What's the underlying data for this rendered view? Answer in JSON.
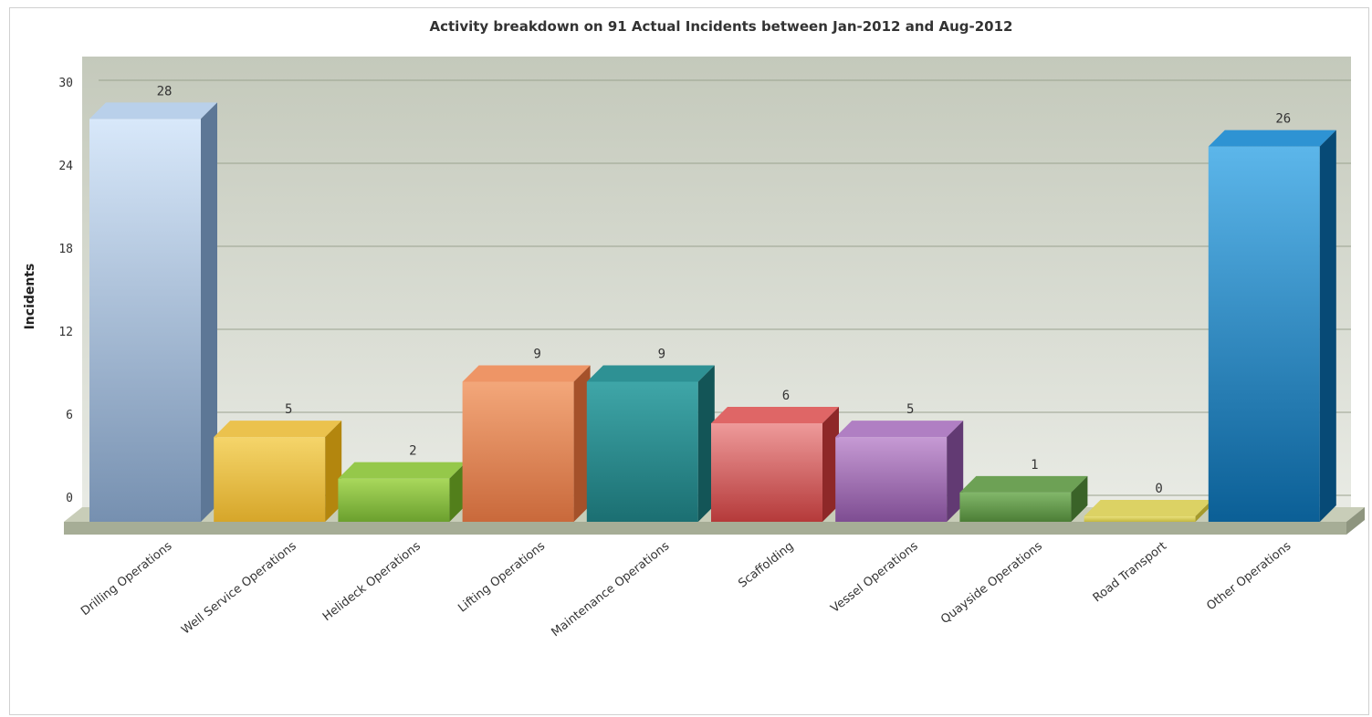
{
  "chart_data": {
    "type": "bar",
    "title": "Activity breakdown on 91 Actual Incidents between Jan-2012 and Aug-2012",
    "xlabel": "",
    "ylabel": "Incidents",
    "ylim": [
      0,
      30
    ],
    "yticks": [
      0,
      6,
      12,
      18,
      24,
      30
    ],
    "grid": true,
    "legend": "none",
    "categories": [
      "Drilling Operations",
      "Well Service Operations",
      "Helideck Operations",
      "Lifting Operations",
      "Maintenance Operations",
      "Scaffolding",
      "Vessel Operations",
      "Quayside Operations",
      "Road Transport",
      "Other Operations"
    ],
    "values": [
      28,
      5,
      2,
      9,
      9,
      6,
      5,
      1,
      0,
      26
    ],
    "colors": [
      {
        "light": "#d8e8fa",
        "dark": "#7690b0",
        "side": "#5d7796",
        "top": "#b9d0ea"
      },
      {
        "light": "#f5d56a",
        "dark": "#d6a62a",
        "side": "#b3860e",
        "top": "#ebc24d"
      },
      {
        "light": "#a9d85c",
        "dark": "#6ba02e",
        "side": "#527f1b",
        "top": "#95c84a"
      },
      {
        "light": "#f3a77a",
        "dark": "#c9693b",
        "side": "#a5512a",
        "top": "#ee9566"
      },
      {
        "light": "#3fa6a8",
        "dark": "#1b6f72",
        "side": "#135557",
        "top": "#2e9194"
      },
      {
        "light": "#ee9a9a",
        "dark": "#b53a3a",
        "side": "#8e2828",
        "top": "#df6666"
      },
      {
        "light": "#c69ad4",
        "dark": "#7e4d92",
        "side": "#623a73",
        "top": "#b07fc3"
      },
      {
        "light": "#82b76a",
        "dark": "#4c7e36",
        "side": "#3a6328",
        "top": "#6da155"
      },
      {
        "light": "#e8df7c",
        "dark": "#c4b83f",
        "side": "#a59a2c",
        "top": "#dcd264"
      },
      {
        "light": "#5cb6ea",
        "dark": "#0b5f96",
        "side": "#074a76",
        "top": "#2e93d3"
      }
    ]
  }
}
